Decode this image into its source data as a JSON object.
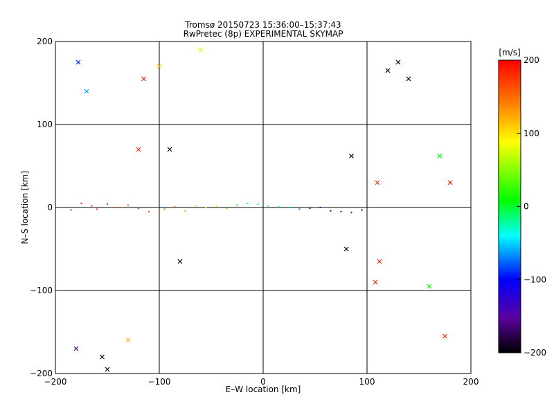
{
  "chart_data": {
    "type": "scatter",
    "title_line1": "Tromsø 20150723 15:36:00–15:37:43",
    "title_line2": "RwPretec (8p) EXPERIMENTAL SKYMAP",
    "xlabel": "E–W location [km]",
    "ylabel": "N–S location [km]",
    "xlim": [
      -200,
      200
    ],
    "ylim": [
      -200,
      200
    ],
    "x_ticks": [
      -200,
      -100,
      0,
      100,
      200
    ],
    "x_tick_labels": [
      "−200",
      "−100",
      "0",
      "100",
      "200"
    ],
    "y_ticks": [
      -200,
      -100,
      0,
      100,
      200
    ],
    "y_tick_labels": [
      "−200",
      "−100",
      "0",
      "100",
      "200"
    ],
    "grid_lines": [
      -100,
      0,
      100
    ],
    "colorbar": {
      "label": "[m/s]",
      "range": [
        -200,
        200
      ],
      "ticks": [
        -200,
        -100,
        0,
        100,
        200
      ],
      "tick_labels": [
        "−200",
        "−100",
        "0",
        "100",
        "200"
      ],
      "colormap": [
        "#000000",
        "#5a00a0",
        "#0000ff",
        "#00ffff",
        "#00ff00",
        "#ffff00",
        "#ff8000",
        "#ff0000"
      ]
    },
    "marker_types": [
      "dot",
      "cross"
    ],
    "points": [
      {
        "x": -185,
        "y": -3,
        "v": 190,
        "m": "dot"
      },
      {
        "x": -175,
        "y": 5,
        "v": 185,
        "m": "dot"
      },
      {
        "x": -165,
        "y": 2,
        "v": 180,
        "m": "dot"
      },
      {
        "x": -160,
        "y": -2,
        "v": 170,
        "m": "dot"
      },
      {
        "x": -150,
        "y": 4,
        "v": 175,
        "m": "dot"
      },
      {
        "x": -140,
        "y": 0,
        "v": 165,
        "m": "dot"
      },
      {
        "x": -130,
        "y": 3,
        "v": 160,
        "m": "dot"
      },
      {
        "x": -120,
        "y": -1,
        "v": 170,
        "m": "dot"
      },
      {
        "x": -110,
        "y": -5,
        "v": 165,
        "m": "dot"
      },
      {
        "x": -100,
        "y": -3,
        "v": 160,
        "m": "dot"
      },
      {
        "x": -95,
        "y": -2,
        "v": 150,
        "m": "dot"
      },
      {
        "x": -85,
        "y": 1,
        "v": 145,
        "m": "dot"
      },
      {
        "x": -75,
        "y": -4,
        "v": 130,
        "m": "dot"
      },
      {
        "x": -65,
        "y": 2,
        "v": 115,
        "m": "dot"
      },
      {
        "x": -55,
        "y": 0,
        "v": 95,
        "m": "dot"
      },
      {
        "x": -45,
        "y": 2,
        "v": 70,
        "m": "dot"
      },
      {
        "x": -35,
        "y": -1,
        "v": 45,
        "m": "dot"
      },
      {
        "x": -25,
        "y": 3,
        "v": 25,
        "m": "dot"
      },
      {
        "x": -15,
        "y": 5,
        "v": 12,
        "m": "dot"
      },
      {
        "x": -5,
        "y": 4,
        "v": 5,
        "m": "dot"
      },
      {
        "x": 5,
        "y": 2,
        "v": -5,
        "m": "dot"
      },
      {
        "x": 15,
        "y": 1,
        "v": -25,
        "m": "dot"
      },
      {
        "x": 25,
        "y": 0,
        "v": -40,
        "m": "dot"
      },
      {
        "x": 35,
        "y": -2,
        "v": -60,
        "m": "dot"
      },
      {
        "x": 45,
        "y": -1,
        "v": -85,
        "m": "dot"
      },
      {
        "x": 55,
        "y": 0,
        "v": -105,
        "m": "dot"
      },
      {
        "x": 65,
        "y": -4,
        "v": -120,
        "m": "dot"
      },
      {
        "x": 75,
        "y": -5,
        "v": -140,
        "m": "dot"
      },
      {
        "x": 85,
        "y": -6,
        "v": -160,
        "m": "dot"
      },
      {
        "x": 95,
        "y": -3,
        "v": -175,
        "m": "dot"
      },
      {
        "x": -115,
        "y": 155,
        "v": 190,
        "m": "cross"
      },
      {
        "x": -155,
        "y": -180,
        "v": -200,
        "m": "cross"
      },
      {
        "x": -120,
        "y": 70,
        "v": 180,
        "m": "cross"
      },
      {
        "x": 130,
        "y": 175,
        "v": -200,
        "m": "cross"
      },
      {
        "x": 120,
        "y": 165,
        "v": -195,
        "m": "cross"
      },
      {
        "x": 140,
        "y": 155,
        "v": -190,
        "m": "cross"
      },
      {
        "x": 180,
        "y": 30,
        "v": 190,
        "m": "cross"
      },
      {
        "x": 175,
        "y": -155,
        "v": 185,
        "m": "cross"
      },
      {
        "x": -180,
        "y": -170,
        "v": -160,
        "m": "cross"
      },
      {
        "x": -150,
        "y": -195,
        "v": -200,
        "m": "cross"
      },
      {
        "x": -60,
        "y": 190,
        "v": 80,
        "m": "cross"
      },
      {
        "x": -100,
        "y": 170,
        "v": 110,
        "m": "cross"
      },
      {
        "x": -130,
        "y": -160,
        "v": 120,
        "m": "cross"
      },
      {
        "x": 110,
        "y": 30,
        "v": 175,
        "m": "cross"
      },
      {
        "x": 112,
        "y": -65,
        "v": 180,
        "m": "cross"
      },
      {
        "x": 108,
        "y": -90,
        "v": 185,
        "m": "cross"
      },
      {
        "x": -90,
        "y": 70,
        "v": -200,
        "m": "cross"
      },
      {
        "x": -80,
        "y": -65,
        "v": -200,
        "m": "cross"
      },
      {
        "x": 80,
        "y": -50,
        "v": -200,
        "m": "cross"
      },
      {
        "x": 85,
        "y": 62,
        "v": -200,
        "m": "cross"
      },
      {
        "x": 170,
        "y": 62,
        "v": 20,
        "m": "cross"
      },
      {
        "x": 160,
        "y": -95,
        "v": 30,
        "m": "cross"
      },
      {
        "x": -170,
        "y": 140,
        "v": -50,
        "m": "cross"
      },
      {
        "x": -178,
        "y": 175,
        "v": -80,
        "m": "cross"
      }
    ]
  }
}
